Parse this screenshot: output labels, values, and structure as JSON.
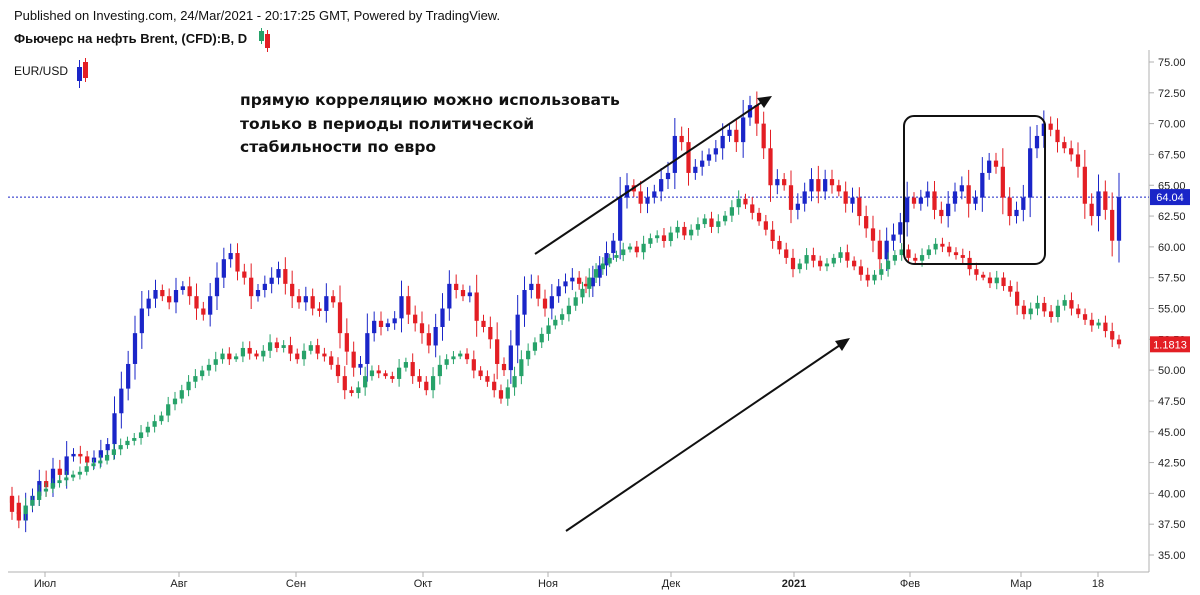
{
  "header": {
    "published": "Published on Investing.com, 24/Mar/2021 - 20:17:25 GMT, Powered by TradingView.",
    "main_symbol": "Фьючерс на нефть Brent, (CFD):B, D",
    "second_symbol": "EUR/USD"
  },
  "annotation": {
    "line1": "прямую корреляцию можно использовать",
    "line2": "только в периоды политической",
    "line3": "стабильности по евро"
  },
  "colors": {
    "brent_up": "#1a25c8",
    "brent_down": "#e31e24",
    "eurusd_up": "#26a269",
    "eurusd_down": "#e31e24",
    "price_line": "#1a25c8",
    "brent_tag": "#1a25c8",
    "eurusd_tag": "#e31e24"
  },
  "chart_data": {
    "type": "candlestick",
    "x_labels": [
      "Июл",
      "Авг",
      "Сен",
      "Окт",
      "Ноя",
      "Дек",
      "2021",
      "Фев",
      "Мар",
      "18"
    ],
    "y_ticks": [
      "75.00",
      "72.50",
      "70.00",
      "67.50",
      "65.00",
      "62.50",
      "60.00",
      "57.50",
      "55.00",
      "52.50",
      "50.00",
      "47.50",
      "45.00",
      "42.50",
      "40.00",
      "37.50",
      "35.00"
    ],
    "ylim": [
      35,
      75
    ],
    "price_tags": [
      {
        "series": "Brent",
        "label": "64.04",
        "value": 64.04
      },
      {
        "series": "EUR/USD",
        "label": "1.1813",
        "value": 1.1813
      }
    ],
    "series": [
      {
        "name": "Фьючерс на нефть Brent, (CFD):B, D",
        "style": "candles",
        "close": [
          38.5,
          37.8,
          39.0,
          39.8,
          41.0,
          40.5,
          42.0,
          41.5,
          43.0,
          43.2,
          43.0,
          42.5,
          42.9,
          43.5,
          44.0,
          46.5,
          48.5,
          50.5,
          53.0,
          55.0,
          55.8,
          56.5,
          56.0,
          55.5,
          56.5,
          56.8,
          56.0,
          55.0,
          54.5,
          56.0,
          57.5,
          59.0,
          59.5,
          58.0,
          57.5,
          56.0,
          56.5,
          57.0,
          57.5,
          58.2,
          57.0,
          56.0,
          55.5,
          56.0,
          55.0,
          54.8,
          56.0,
          55.5,
          53.0,
          51.5,
          50.2,
          50.5,
          53.0,
          54.0,
          53.5,
          53.8,
          54.2,
          56.0,
          54.5,
          53.8,
          53.0,
          52.0,
          53.5,
          55.0,
          57.0,
          56.5,
          56.0,
          56.3,
          54.0,
          53.5,
          52.5,
          50.5,
          50.0,
          52.0,
          54.5,
          56.5,
          57.0,
          55.8,
          55.0,
          56.0,
          56.8,
          57.2,
          57.5,
          57.0,
          56.8,
          57.5,
          58.5,
          59.5,
          60.5,
          64.0,
          65.0,
          64.5,
          63.5,
          64.0,
          64.5,
          65.5,
          66.0,
          69.0,
          68.5,
          66.0,
          66.5,
          67.0,
          67.5,
          68.0,
          69.0,
          69.5,
          68.5,
          70.5,
          71.5,
          70.0,
          68.0,
          65.0,
          65.5,
          65.0,
          63.0,
          63.5,
          64.5,
          65.5,
          64.5,
          65.5,
          65.0,
          64.5,
          63.5,
          64.0,
          62.5,
          61.5,
          60.5,
          59.0,
          60.5,
          61.0,
          62.0,
          64.0,
          63.5,
          64.0,
          64.5,
          63.0,
          62.5,
          63.5,
          64.5,
          65.0,
          63.5,
          64.0,
          66.0,
          67.0,
          66.5,
          64.0,
          62.5,
          63.0,
          64.0,
          68.0,
          69.0,
          70.0,
          69.5,
          68.5,
          68.0,
          67.5,
          66.5,
          63.5,
          62.5,
          64.5,
          63.0,
          60.5,
          64.04
        ]
      },
      {
        "name": "EUR/USD",
        "style": "candles",
        "close": [
          1.125,
          1.121,
          1.124,
          1.126,
          1.129,
          1.13,
          1.132,
          1.133,
          1.134,
          1.135,
          1.136,
          1.138,
          1.139,
          1.14,
          1.142,
          1.144,
          1.1455,
          1.147,
          1.148,
          1.15,
          1.152,
          1.154,
          1.156,
          1.16,
          1.162,
          1.165,
          1.168,
          1.17,
          1.172,
          1.174,
          1.176,
          1.178,
          1.176,
          1.177,
          1.18,
          1.178,
          1.177,
          1.179,
          1.182,
          1.18,
          1.181,
          1.178,
          1.176,
          1.179,
          1.181,
          1.178,
          1.177,
          1.174,
          1.17,
          1.165,
          1.164,
          1.166,
          1.17,
          1.172,
          1.171,
          1.17,
          1.169,
          1.173,
          1.175,
          1.17,
          1.168,
          1.165,
          1.17,
          1.174,
          1.176,
          1.177,
          1.178,
          1.176,
          1.172,
          1.17,
          1.168,
          1.165,
          1.162,
          1.166,
          1.17,
          1.176,
          1.179,
          1.182,
          1.185,
          1.188,
          1.19,
          1.192,
          1.195,
          1.198,
          1.201,
          1.205,
          1.208,
          1.21,
          1.212,
          1.213,
          1.215,
          1.216,
          1.214,
          1.217,
          1.219,
          1.22,
          1.218,
          1.221,
          1.223,
          1.22,
          1.222,
          1.224,
          1.226,
          1.223,
          1.225,
          1.227,
          1.23,
          1.233,
          1.231,
          1.228,
          1.225,
          1.222,
          1.218,
          1.215,
          1.212,
          1.208,
          1.21,
          1.213,
          1.211,
          1.209,
          1.21,
          1.212,
          1.214,
          1.211,
          1.209,
          1.206,
          1.204,
          1.206,
          1.208,
          1.211,
          1.213,
          1.215,
          1.212,
          1.211,
          1.213,
          1.215,
          1.217,
          1.216,
          1.214,
          1.213,
          1.212,
          1.208,
          1.206,
          1.205,
          1.203,
          1.205,
          1.202,
          1.2,
          1.195,
          1.192,
          1.194,
          1.196,
          1.193,
          1.191,
          1.195,
          1.197,
          1.194,
          1.192,
          1.19,
          1.188,
          1.189,
          1.186,
          1.183,
          1.1813
        ]
      }
    ]
  }
}
